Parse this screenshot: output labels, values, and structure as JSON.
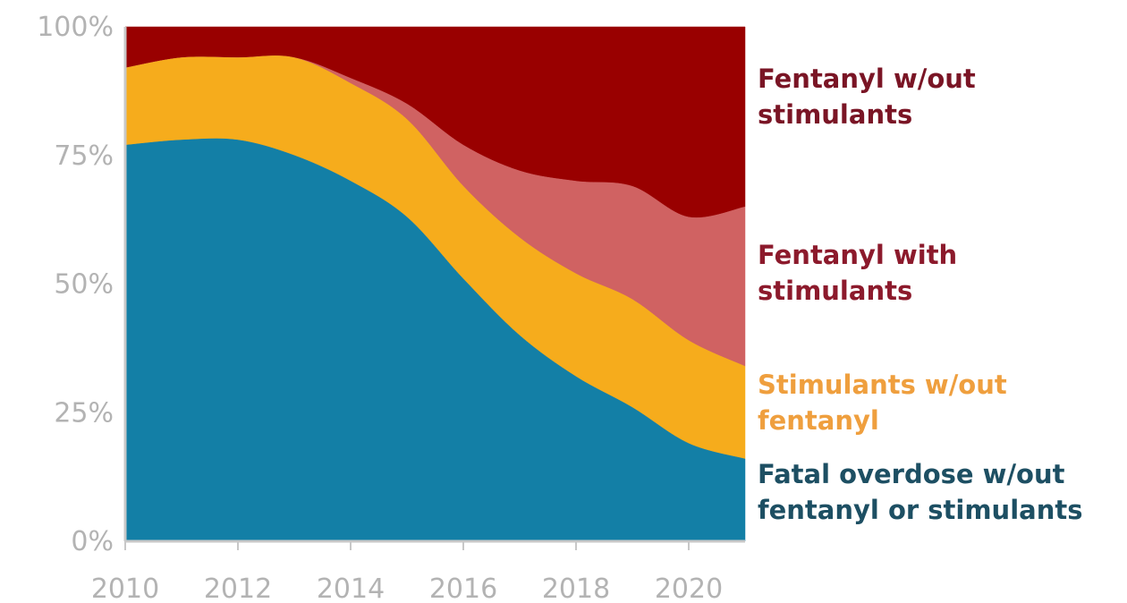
{
  "chart_data": {
    "type": "area",
    "stacked": true,
    "normalized_percent": true,
    "x": [
      2010,
      2011,
      2012,
      2013,
      2014,
      2015,
      2016,
      2017,
      2018,
      2019,
      2020,
      2021
    ],
    "xlim": [
      2010,
      2021
    ],
    "ylim": [
      0,
      100
    ],
    "x_ticks": [
      {
        "value": 2010,
        "label": "2010"
      },
      {
        "value": 2012,
        "label": "2012"
      },
      {
        "value": 2014,
        "label": "2014"
      },
      {
        "value": 2016,
        "label": "2016"
      },
      {
        "value": 2018,
        "label": "2018"
      },
      {
        "value": 2020,
        "label": "2020"
      }
    ],
    "y_ticks": [
      {
        "value": 0,
        "label": "0%"
      },
      {
        "value": 25,
        "label": "25%"
      },
      {
        "value": 50,
        "label": "50%"
      },
      {
        "value": 75,
        "label": "75%"
      },
      {
        "value": 100,
        "label": "100%"
      }
    ],
    "grid": false,
    "legend_placement": "right, labels aligned to series",
    "series": [
      {
        "name": "Fatal overdose w/out fentanyl or stimulants",
        "label_lines": [
          "Fatal overdose w/out",
          "fentanyl or stimulants"
        ],
        "color": "#137fa6",
        "label_color": "#1d4f63",
        "values": [
          77,
          78,
          78,
          75,
          70,
          63,
          51,
          40,
          32,
          26,
          19,
          16
        ]
      },
      {
        "name": "Stimulants w/out fentanyl",
        "label_lines": [
          "Stimulants w/out",
          "fentanyl"
        ],
        "color": "#f6ac1c",
        "label_color": "#ef9f3e",
        "values": [
          15,
          16,
          16,
          19,
          19,
          19,
          18,
          19,
          20,
          21,
          20,
          18
        ]
      },
      {
        "name": "Fentanyl with stimulants",
        "label_lines": [
          "Fentanyl with",
          "stimulants"
        ],
        "color": "#d06262",
        "label_color": "#8c1a2c",
        "values": [
          0,
          0,
          0,
          0,
          1,
          3,
          8,
          13,
          18,
          22,
          24,
          31
        ]
      },
      {
        "name": "Fentanyl w/out stimulants",
        "label_lines": [
          "Fentanyl w/out",
          "stimulants"
        ],
        "color": "#990000",
        "label_color": "#7a1525",
        "values": [
          8,
          6,
          6,
          6,
          10,
          15,
          23,
          28,
          30,
          31,
          37,
          35
        ]
      }
    ]
  }
}
